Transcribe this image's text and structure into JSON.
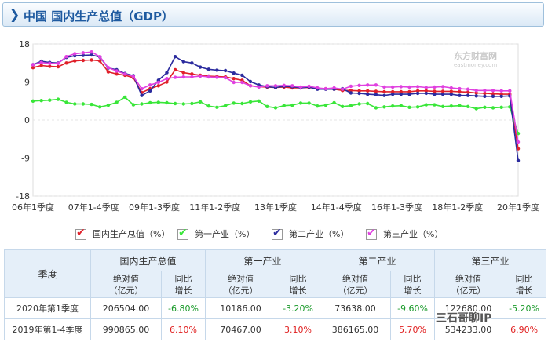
{
  "header": {
    "title": "中国 国内生产总值（GDP）"
  },
  "watermark": {
    "brand": "东方财富网",
    "url": "eastmoney.com"
  },
  "legend": [
    {
      "label": "国内生产总值（%）",
      "color": "#e0202a"
    },
    {
      "label": "第一产业（%）",
      "color": "#39e639"
    },
    {
      "label": "第二产业（%）",
      "color": "#2b2b9e"
    },
    {
      "label": "第三产业（%）",
      "color": "#e040e0"
    }
  ],
  "chart_data": {
    "type": "line",
    "ylim": [
      -18,
      18
    ],
    "yticks": [
      "18",
      "9",
      "0",
      "-9",
      "-18"
    ],
    "x_tick_labels": [
      "06年1季度",
      "07年1-4季度",
      "09年1-3季度",
      "11年1-2季度",
      "13年1季度",
      "14年1-4季度",
      "16年1-3季度",
      "18年1-2季度",
      "20年1季度"
    ],
    "series": [
      {
        "name": "国内生产总值（%）",
        "color": "#e0202a",
        "values": [
          12.4,
          12.9,
          12.7,
          12.6,
          13.5,
          14.0,
          14.1,
          14.2,
          14.0,
          11.4,
          10.9,
          10.6,
          10.0,
          6.5,
          7.4,
          8.1,
          9.0,
          11.9,
          11.2,
          10.9,
          10.6,
          10.4,
          10.3,
          10.2,
          9.8,
          9.4,
          8.1,
          7.9,
          7.8,
          7.7,
          7.8,
          7.6,
          7.6,
          7.7,
          7.4,
          7.4,
          7.3,
          7.0,
          7.0,
          6.9,
          6.9,
          6.8,
          6.7,
          6.7,
          6.7,
          6.7,
          6.9,
          6.9,
          6.8,
          6.8,
          6.8,
          6.7,
          6.6,
          6.4,
          6.3,
          6.2,
          6.1,
          6.1,
          -6.8
        ]
      },
      {
        "name": "第一产业（%）",
        "color": "#39e639",
        "values": [
          4.5,
          4.6,
          4.7,
          4.9,
          4.2,
          3.8,
          3.8,
          3.7,
          3.1,
          3.5,
          4.2,
          5.4,
          3.6,
          3.8,
          4.1,
          4.2,
          4.1,
          3.9,
          3.8,
          3.9,
          4.3,
          3.3,
          3.0,
          3.4,
          4.0,
          3.9,
          4.3,
          4.5,
          3.2,
          2.9,
          3.4,
          3.5,
          4.0,
          4.0,
          3.3,
          3.5,
          4.1,
          3.2,
          3.4,
          3.8,
          3.9,
          2.9,
          3.1,
          3.3,
          3.4,
          3.0,
          3.1,
          3.6,
          3.6,
          3.2,
          3.3,
          3.4,
          3.2,
          2.7,
          3.0,
          2.9,
          3.0,
          3.1,
          -3.2
        ]
      },
      {
        "name": "第二产业（%）",
        "color": "#2b2b9e",
        "values": [
          13.1,
          13.9,
          13.6,
          13.5,
          14.8,
          15.2,
          15.3,
          15.4,
          14.9,
          12.3,
          11.9,
          11.0,
          10.5,
          5.8,
          6.9,
          9.4,
          11.2,
          15.0,
          13.8,
          13.5,
          12.5,
          12.0,
          11.8,
          11.7,
          11.1,
          10.6,
          9.1,
          8.3,
          7.9,
          7.7,
          8.0,
          7.9,
          7.6,
          7.8,
          7.3,
          7.3,
          7.3,
          7.4,
          6.4,
          6.3,
          6.1,
          6.0,
          5.8,
          6.1,
          6.1,
          6.1,
          6.3,
          6.3,
          6.1,
          6.1,
          6.1,
          5.8,
          5.8,
          5.7,
          5.6,
          5.6,
          5.6,
          5.7,
          -9.6
        ]
      },
      {
        "name": "第三产业（%）",
        "color": "#e040e0",
        "values": [
          13.1,
          13.6,
          13.4,
          13.4,
          15.0,
          15.7,
          15.9,
          16.1,
          15.0,
          12.4,
          11.6,
          10.9,
          10.3,
          7.4,
          8.3,
          8.9,
          9.8,
          10.1,
          10.2,
          10.2,
          10.4,
          10.2,
          10.1,
          10.0,
          8.9,
          8.9,
          8.1,
          7.8,
          8.1,
          8.1,
          8.2,
          8.1,
          7.8,
          8.0,
          7.6,
          7.4,
          7.6,
          7.3,
          8.0,
          8.2,
          8.3,
          8.3,
          7.8,
          7.8,
          7.9,
          7.8,
          7.9,
          7.7,
          7.8,
          7.9,
          7.6,
          7.4,
          7.3,
          7.0,
          7.0,
          7.0,
          6.9,
          6.9,
          -5.2
        ]
      }
    ]
  },
  "table": {
    "col_quarter": "季度",
    "groups": [
      "国内生产总值",
      "第一产业",
      "第二产业",
      "第三产业"
    ],
    "sub_abs": "绝对值（亿元）",
    "sub_yoy": "同比增长",
    "rows": [
      {
        "quarter": "2020年第1季度",
        "cells": [
          {
            "abs": "206504.00",
            "yoy": "-6.80%",
            "dir": "neg"
          },
          {
            "abs": "10186.00",
            "yoy": "-3.20%",
            "dir": "neg"
          },
          {
            "abs": "73638.00",
            "yoy": "-9.60%",
            "dir": "neg"
          },
          {
            "abs": "122680.00",
            "yoy": "-5.20%",
            "dir": "neg"
          }
        ]
      },
      {
        "quarter": "2019年第1-4季度",
        "cells": [
          {
            "abs": "990865.00",
            "yoy": "6.10%",
            "dir": "pos"
          },
          {
            "abs": "70467.00",
            "yoy": "3.10%",
            "dir": "pos"
          },
          {
            "abs": "386165.00",
            "yoy": "5.70%",
            "dir": "pos"
          },
          {
            "abs": "534233.00",
            "yoy": "6.90%",
            "dir": "pos"
          }
        ]
      }
    ]
  },
  "overlay_logo": "三石哥聊IP"
}
